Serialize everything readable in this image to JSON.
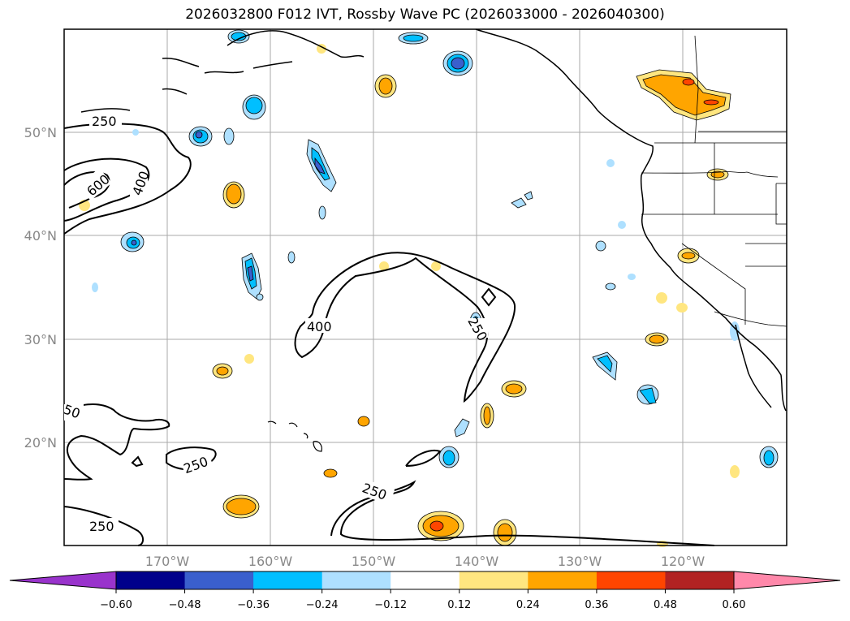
{
  "title": "2026032800 F012 IVT, Rossby Wave PC (2026033000 - 2026040300)",
  "latitudes": [
    "50°N",
    "40°N",
    "30°N",
    "20°N"
  ],
  "longitudes": [
    "170°W",
    "160°W",
    "150°W",
    "140°W",
    "130°W",
    "120°W"
  ],
  "colorbar": {
    "ticks": [
      "−0.60",
      "−0.48",
      "−0.36",
      "−0.24",
      "−0.12",
      "0.12",
      "0.24",
      "0.36",
      "0.48",
      "0.60"
    ],
    "colors": [
      "#9933cc",
      "#00008b",
      "#3a5fcd",
      "#00bfff",
      "#aee0ff",
      "#ffffff",
      "#ffe680",
      "#ffa500",
      "#ff4500",
      "#b22222",
      "#ff88aa"
    ]
  },
  "contour_labels": [
    "250",
    "600",
    "400",
    "400",
    "250",
    "250",
    "250",
    "250",
    "50"
  ]
}
